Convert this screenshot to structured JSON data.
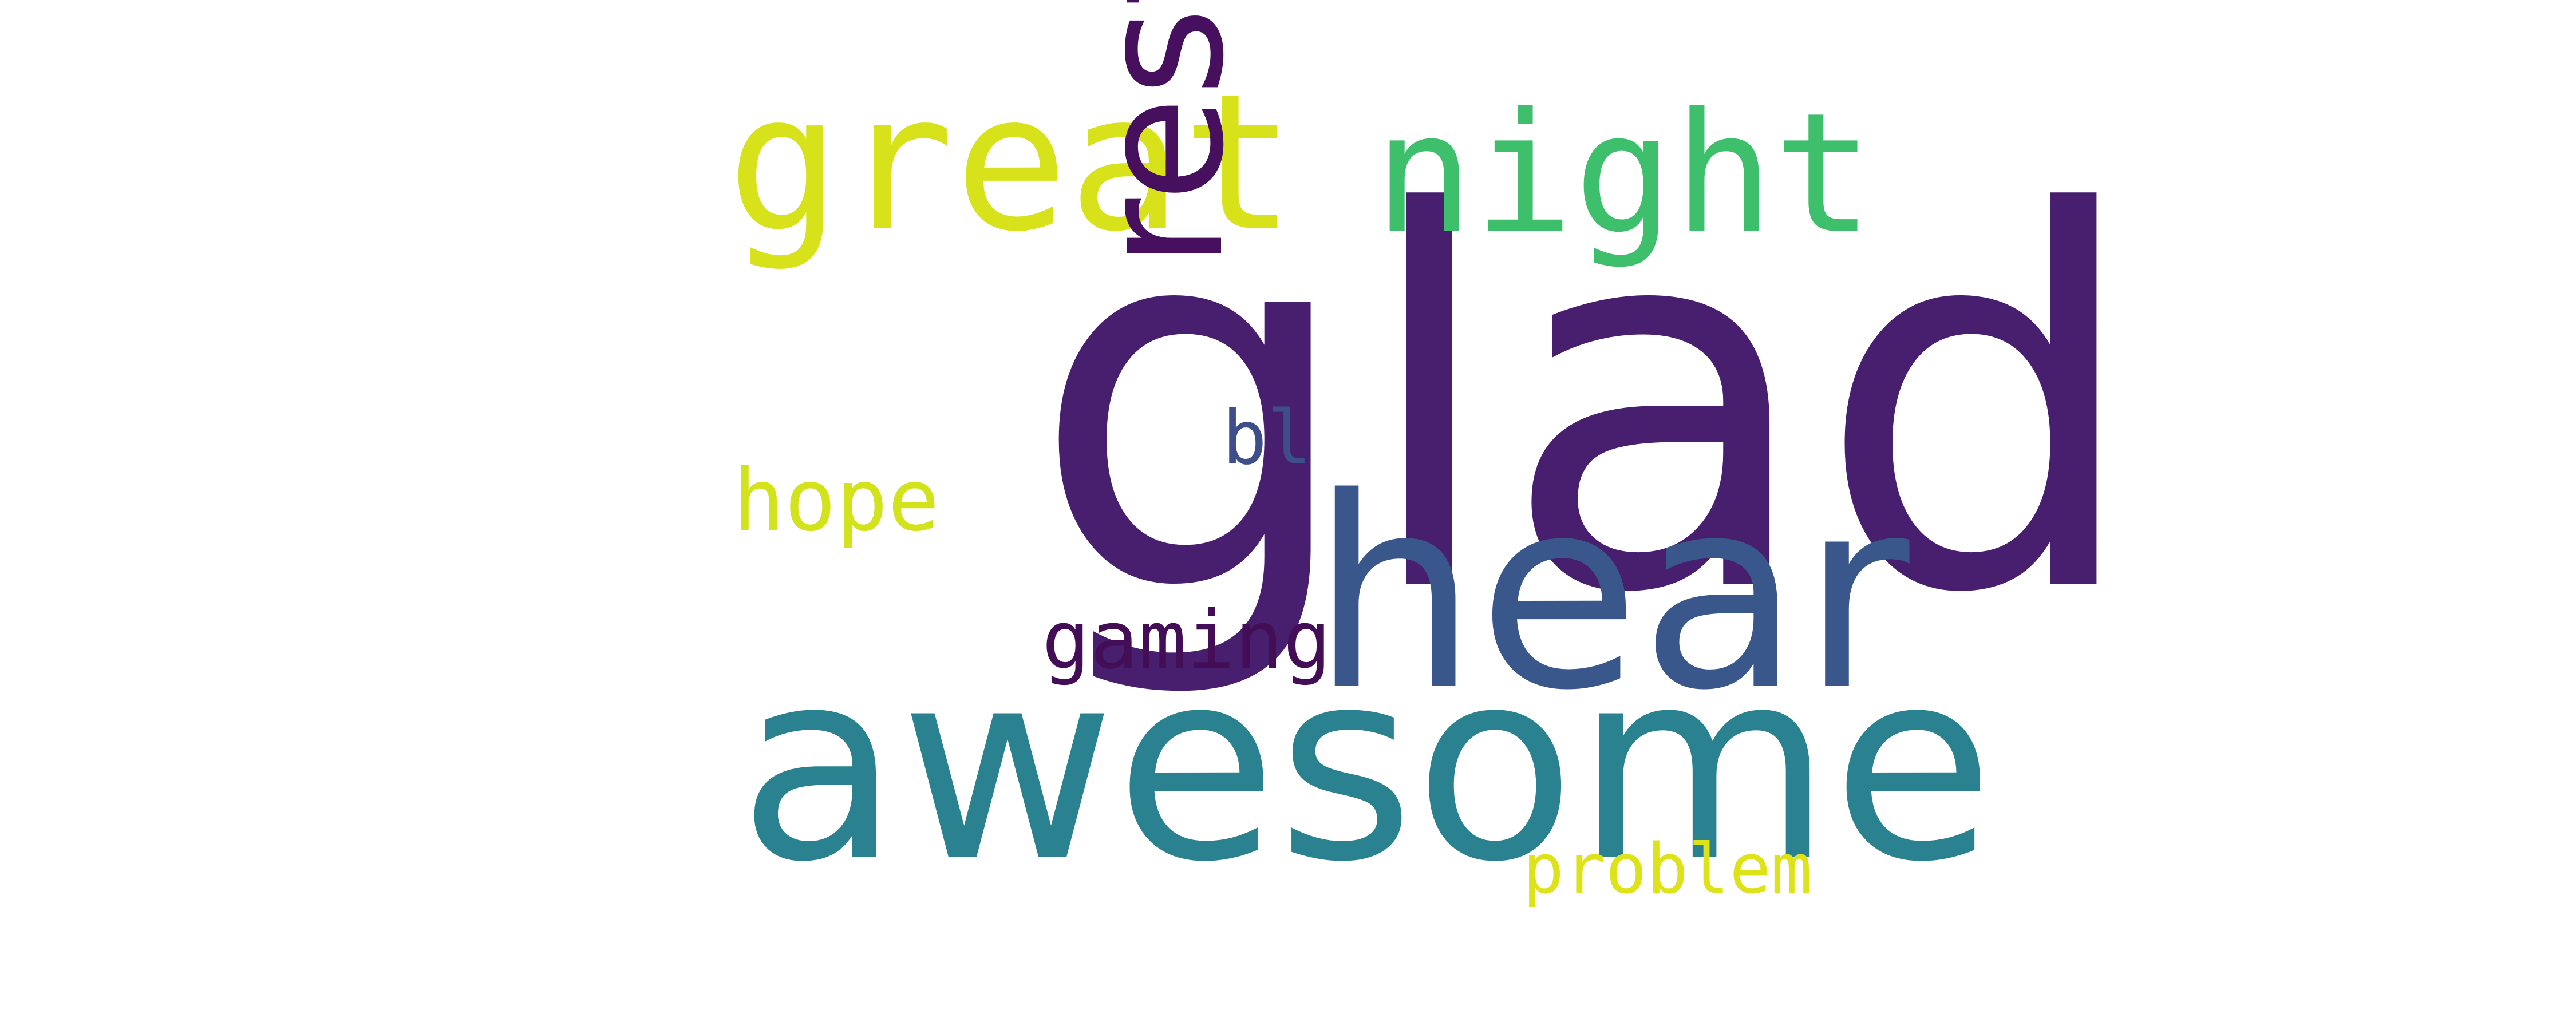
{
  "wordcloud": {
    "background": "#ffffff",
    "words": [
      {
        "key": "glad",
        "text": "glad",
        "color": "#471f6e",
        "orientation": "horizontal"
      },
      {
        "key": "awesome",
        "text": "awesome",
        "color": "#2a8290",
        "orientation": "horizontal"
      },
      {
        "key": "hear",
        "text": "hear",
        "color": "#3a578c",
        "orientation": "horizontal"
      },
      {
        "key": "great",
        "text": "great",
        "color": "#d7e21a",
        "orientation": "horizontal"
      },
      {
        "key": "night",
        "text": "night",
        "color": "#3ebf6c",
        "orientation": "horizontal"
      },
      {
        "key": "rest",
        "text": "rest",
        "color": "#46105e",
        "orientation": "vertical"
      },
      {
        "key": "hope",
        "text": "hope",
        "color": "#d2e21b",
        "orientation": "horizontal"
      },
      {
        "key": "gaming",
        "text": "gaming",
        "color": "#440e57",
        "orientation": "horizontal"
      },
      {
        "key": "bl",
        "text": "bl",
        "color": "#3d4e8a",
        "orientation": "horizontal"
      },
      {
        "key": "problem",
        "text": "problem",
        "color": "#dde318",
        "orientation": "horizontal"
      }
    ]
  }
}
